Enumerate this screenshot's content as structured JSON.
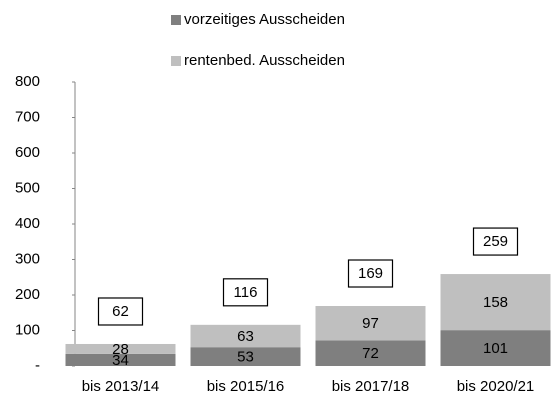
{
  "chart_data": {
    "type": "stacked_bar",
    "categories": [
      "bis 2013/14",
      "bis 2015/16",
      "bis 2017/18",
      "bis 2020/21"
    ],
    "series": [
      {
        "name": "vorzeitiges Ausscheiden",
        "color": "#7f7f7f",
        "values": [
          34,
          53,
          72,
          101
        ]
      },
      {
        "name": "rentenbed. Ausscheiden",
        "color": "#bfbfbf",
        "values": [
          28,
          63,
          97,
          158
        ]
      }
    ],
    "totals": [
      62,
      116,
      169,
      259
    ],
    "ylim": [
      0,
      800
    ],
    "yticks": [
      {
        "value": 0,
        "label": "-"
      },
      100,
      200,
      300,
      400,
      500,
      600,
      700,
      800
    ],
    "grid": false
  }
}
